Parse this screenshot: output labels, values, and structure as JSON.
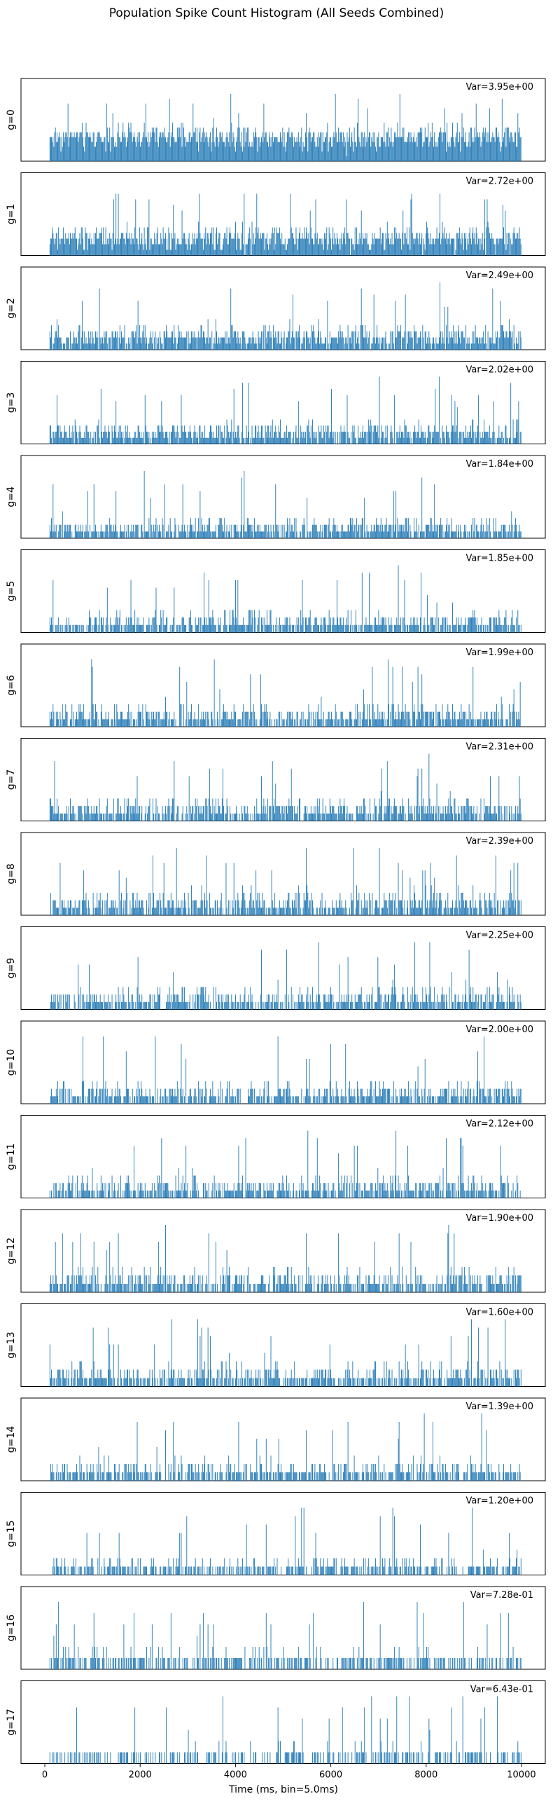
{
  "chart_data": {
    "type": "bar",
    "title": "Population Spike Count Histogram (All Seeds Combined)",
    "xlabel": "Time (ms, bin=5.0ms)",
    "xlim": [
      -500,
      10500
    ],
    "xticks": [
      0,
      2000,
      4000,
      6000,
      8000,
      10000
    ],
    "bar_color": "#1f77b4",
    "frame_color": "#000000",
    "x_start": 100,
    "x_end": 10000,
    "panels": [
      {
        "label": "g=0",
        "var_text": "Var=3.95e+00",
        "max_count": 14,
        "mean_count": 5.0,
        "var": 3.95
      },
      {
        "label": "g=1",
        "var_text": "Var=2.72e+00",
        "max_count": 12,
        "mean_count": 3.0,
        "var": 2.72
      },
      {
        "label": "g=2",
        "var_text": "Var=2.49e+00",
        "max_count": 11,
        "mean_count": 2.0,
        "var": 2.49
      },
      {
        "label": "g=3",
        "var_text": "Var=2.02e+00",
        "max_count": 11,
        "mean_count": 1.6,
        "var": 2.02
      },
      {
        "label": "g=4",
        "var_text": "Var=1.84e+00",
        "max_count": 10,
        "mean_count": 1.3,
        "var": 1.84
      },
      {
        "label": "g=5",
        "var_text": "Var=1.85e+00",
        "max_count": 9,
        "mean_count": 1.1,
        "var": 1.85
      },
      {
        "label": "g=6",
        "var_text": "Var=1.99e+00",
        "max_count": 9,
        "mean_count": 1.1,
        "var": 1.99
      },
      {
        "label": "g=7",
        "var_text": "Var=2.31e+00",
        "max_count": 9,
        "mean_count": 1.2,
        "var": 2.31
      },
      {
        "label": "g=8",
        "var_text": "Var=2.39e+00",
        "max_count": 9,
        "mean_count": 1.3,
        "var": 2.39
      },
      {
        "label": "g=9",
        "var_text": "Var=2.25e+00",
        "max_count": 9,
        "mean_count": 1.2,
        "var": 2.25
      },
      {
        "label": "g=10",
        "var_text": "Var=2.00e+00",
        "max_count": 9,
        "mean_count": 1.1,
        "var": 2.0
      },
      {
        "label": "g=11",
        "var_text": "Var=2.12e+00",
        "max_count": 9,
        "mean_count": 1.1,
        "var": 2.12
      },
      {
        "label": "g=12",
        "var_text": "Var=1.90e+00",
        "max_count": 8,
        "mean_count": 1.0,
        "var": 1.9
      },
      {
        "label": "g=13",
        "var_text": "Var=1.60e+00",
        "max_count": 8,
        "mean_count": 0.9,
        "var": 1.6
      },
      {
        "label": "g=14",
        "var_text": "Var=1.39e+00",
        "max_count": 8,
        "mean_count": 0.8,
        "var": 1.39
      },
      {
        "label": "g=15",
        "var_text": "Var=1.20e+00",
        "max_count": 8,
        "mean_count": 0.7,
        "var": 1.2
      },
      {
        "label": "g=16",
        "var_text": "Var=7.28e-01",
        "max_count": 6,
        "mean_count": 0.5,
        "var": 0.728
      },
      {
        "label": "g=17",
        "var_text": "Var=6.43e-01",
        "max_count": 6,
        "mean_count": 0.4,
        "var": 0.643
      }
    ]
  }
}
